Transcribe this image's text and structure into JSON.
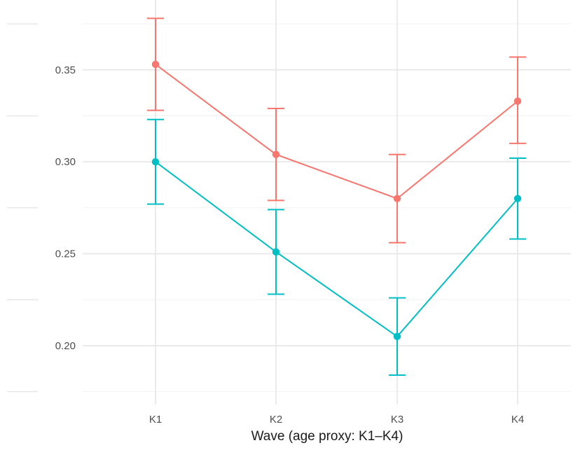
{
  "chart_data": {
    "type": "line",
    "title": "",
    "xlabel": "Wave (age proxy: K1–K4)",
    "ylabel": "",
    "categories": [
      "K1",
      "K2",
      "K3",
      "K4"
    ],
    "ylim": [
      0.168,
      0.388
    ],
    "y_ticks": [
      {
        "value": 0.2,
        "label": "0.20"
      },
      {
        "value": 0.25,
        "label": "0.25"
      },
      {
        "value": 0.3,
        "label": "0.30"
      },
      {
        "value": 0.35,
        "label": "0.35"
      }
    ],
    "y_minor_ticks": [
      0.175,
      0.225,
      0.275,
      0.325,
      0.375
    ],
    "grid": true,
    "legend": "none",
    "error_bars": true,
    "series": [
      {
        "color": "#F8766D",
        "values": [
          0.353,
          0.304,
          0.28,
          0.333
        ],
        "lower": [
          0.328,
          0.279,
          0.256,
          0.31
        ],
        "upper": [
          0.378,
          0.329,
          0.304,
          0.357
        ]
      },
      {
        "color": "#00BFC4",
        "values": [
          0.3,
          0.251,
          0.205,
          0.28
        ],
        "lower": [
          0.277,
          0.228,
          0.184,
          0.258
        ],
        "upper": [
          0.323,
          0.274,
          0.226,
          0.302
        ]
      }
    ]
  },
  "colors": {
    "grid_major": "#e6e6e6",
    "grid_minor": "#f2f2f2",
    "tick_text": "#4d4d4d",
    "axis_title": "#1a1a1a"
  }
}
